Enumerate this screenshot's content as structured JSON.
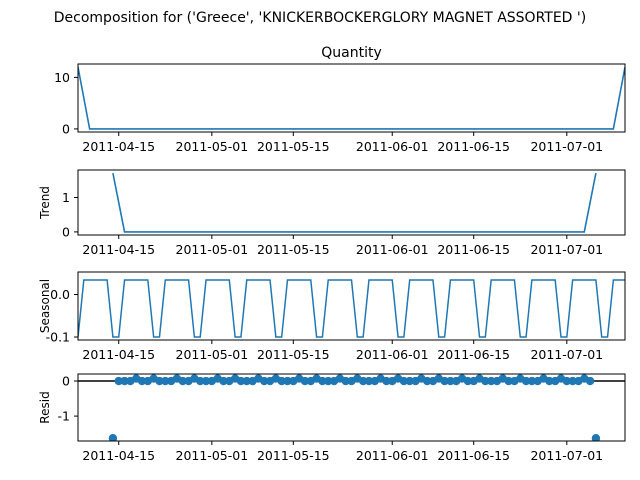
{
  "figure_title": "Decomposition for ('Greece', 'KNICKERBOCKERGLORY MAGNET ASSORTED ')",
  "line_color": "#1f77b4",
  "x_range": [
    "2011-04-08",
    "2011-07-11"
  ],
  "x_ticks": [
    "2011-04-15",
    "2011-05-01",
    "2011-05-15",
    "2011-06-01",
    "2011-06-15",
    "2011-07-01"
  ],
  "chart_data": [
    {
      "type": "line",
      "title": "Quantity",
      "ylabel": "",
      "ylim": [
        -0.6,
        12.6
      ],
      "yticks": [
        "0",
        "10"
      ],
      "x": [
        "2011-04-08",
        "2011-04-10",
        "2011-07-09",
        "2011-07-11"
      ],
      "y": [
        12,
        0,
        0,
        12
      ]
    },
    {
      "type": "line",
      "title": "",
      "ylabel": "Trend",
      "ylim": [
        -0.09,
        1.8
      ],
      "yticks": [
        "0",
        "1"
      ],
      "x": [
        "2011-04-14",
        "2011-04-16",
        "2011-07-04",
        "2011-07-06"
      ],
      "y": [
        1.71,
        0,
        0,
        1.71
      ]
    },
    {
      "type": "line",
      "title": "",
      "ylabel": "Seasonal",
      "ylim": [
        -0.107,
        0.053
      ],
      "yticks": [
        "0.0",
        "-0.1"
      ],
      "period": 7,
      "pattern": [
        -0.1,
        0.0343,
        0.0343,
        0.0343,
        0.0343,
        0.0343,
        -0.1
      ],
      "start": "2011-04-08",
      "end": "2011-07-11"
    },
    {
      "type": "scatter",
      "title": "",
      "ylabel": "Resid",
      "ylim": [
        -1.71,
        0.2
      ],
      "yticks": [
        "0",
        "-1"
      ],
      "baseline": 0,
      "points": [
        [
          "2011-04-14",
          -1.63
        ],
        [
          "2011-07-06",
          -1.63
        ]
      ],
      "pattern": [
        0,
        0,
        0,
        0.07,
        0,
        0,
        0.07
      ],
      "start": "2011-04-15",
      "end": "2011-07-05"
    }
  ]
}
